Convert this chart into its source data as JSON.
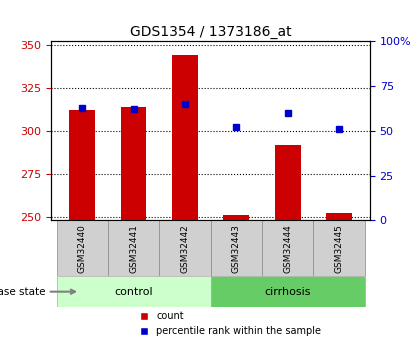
{
  "title": "GDS1354 / 1373186_at",
  "samples": [
    "GSM32440",
    "GSM32441",
    "GSM32442",
    "GSM32443",
    "GSM32444",
    "GSM32445"
  ],
  "counts": [
    312,
    314,
    344,
    251,
    292,
    252
  ],
  "percentiles": [
    63,
    62,
    65,
    52,
    60,
    51
  ],
  "bar_bottom": 248,
  "ylim_left": [
    248,
    352
  ],
  "ylim_right": [
    0,
    100
  ],
  "yticks_left": [
    250,
    275,
    300,
    325,
    350
  ],
  "yticks_right": [
    0,
    25,
    50,
    75,
    100
  ],
  "ytick_labels_right": [
    "0",
    "25",
    "50",
    "75",
    "100%"
  ],
  "bar_color": "#cc0000",
  "square_color": "#0000cc",
  "control_label": "control",
  "cirrhosis_label": "cirrhosis",
  "disease_state_label": "disease state",
  "legend_count": "count",
  "legend_percentile": "percentile rank within the sample",
  "control_bg": "#ccffcc",
  "cirrhosis_bg": "#66cc66",
  "sample_bg": "#d0d0d0",
  "n_control": 3,
  "n_cirrhosis": 3,
  "fig_width": 4.11,
  "fig_height": 3.45
}
